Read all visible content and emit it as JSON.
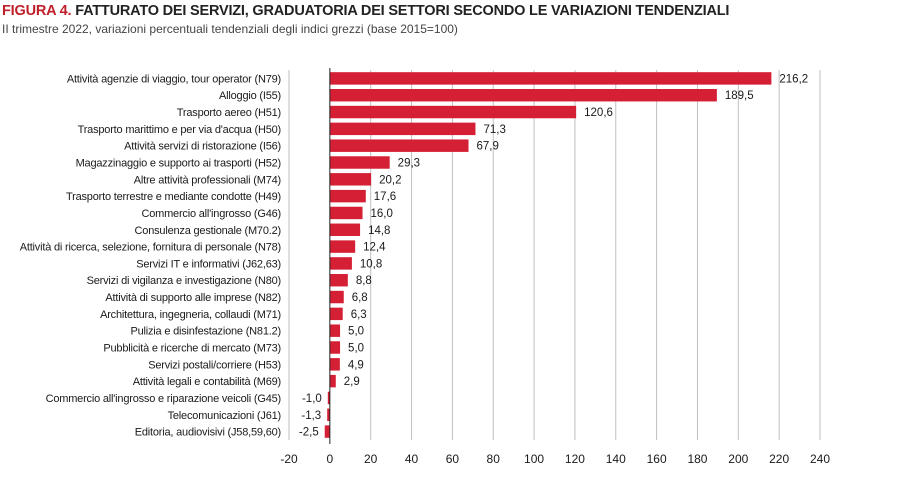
{
  "figure": {
    "label": "FIGURA 4.",
    "title": "FATTURATO DEI SERVIZI, GRADUATORIA DEI SETTORI SECONDO LE VARIAZIONI TENDENZIALI",
    "subtitle": "II trimestre 2022, variazioni percentuali tendenziali degli indici grezzi (base 2015=100)"
  },
  "colors": {
    "bar": "#d41f35",
    "label_red": "#c0202a",
    "grid": "#bfbfbf",
    "axis": "#222222"
  },
  "chart_data": {
    "type": "bar",
    "orientation": "horizontal",
    "title": "FATTURATO DEI SERVIZI, GRADUATORIA DEI SETTORI SECONDO LE VARIAZIONI TENDENZIALI",
    "subtitle": "II trimestre 2022, variazioni percentuali tendenziali degli indici grezzi (base 2015=100)",
    "xlabel": "",
    "ylabel": "",
    "xlim": [
      -20,
      240
    ],
    "xticks": [
      -20,
      0,
      20,
      40,
      60,
      80,
      100,
      120,
      140,
      160,
      180,
      200,
      220,
      240
    ],
    "grid": "vertical",
    "legend": "none",
    "categories": [
      "Attività agenzie di viaggio, tour operator (N79)",
      "Alloggio (I55)",
      "Trasporto aereo (H51)",
      "Trasporto marittimo e per via d'acqua (H50)",
      "Attività servizi di ristorazione (I56)",
      "Magazzinaggio e supporto ai trasporti (H52)",
      "Altre attività professionali (M74)",
      "Trasporto terrestre e mediante condotte (H49)",
      "Commercio all'ingrosso (G46)",
      "Consulenza gestionale (M70.2)",
      "Attività di ricerca, selezione, fornitura di personale (N78)",
      "Servizi IT e informativi (J62,63)",
      "Servizi di vigilanza e investigazione (N80)",
      "Attività di supporto alle imprese (N82)",
      "Architettura, ingegneria, collaudi (M71)",
      "Pulizia e disinfestazione (N81.2)",
      "Pubblicità e ricerche di mercato (M73)",
      "Servizi postali/corriere (H53)",
      "Attività legali e contabilità (M69)",
      "Commercio all'ingrosso e riparazione veicoli (G45)",
      "Telecomunicazioni (J61)",
      "Editoria, audiovisivi (J58,59,60)"
    ],
    "values": [
      216.2,
      189.5,
      120.6,
      71.3,
      67.9,
      29.3,
      20.2,
      17.6,
      16.0,
      14.8,
      12.4,
      10.8,
      8.8,
      6.8,
      6.3,
      5.0,
      5.0,
      4.9,
      2.9,
      -1.0,
      -1.3,
      -2.5
    ],
    "value_labels": [
      "216,2",
      "189,5",
      "120,6",
      "71,3",
      "67,9",
      "29,3",
      "20,2",
      "17,6",
      "16,0",
      "14,8",
      "12,4",
      "10,8",
      "8,8",
      "6,8",
      "6,3",
      "5,0",
      "5,0",
      "4,9",
      "2,9",
      "-1,0",
      "-1,3",
      "-2,5"
    ]
  }
}
